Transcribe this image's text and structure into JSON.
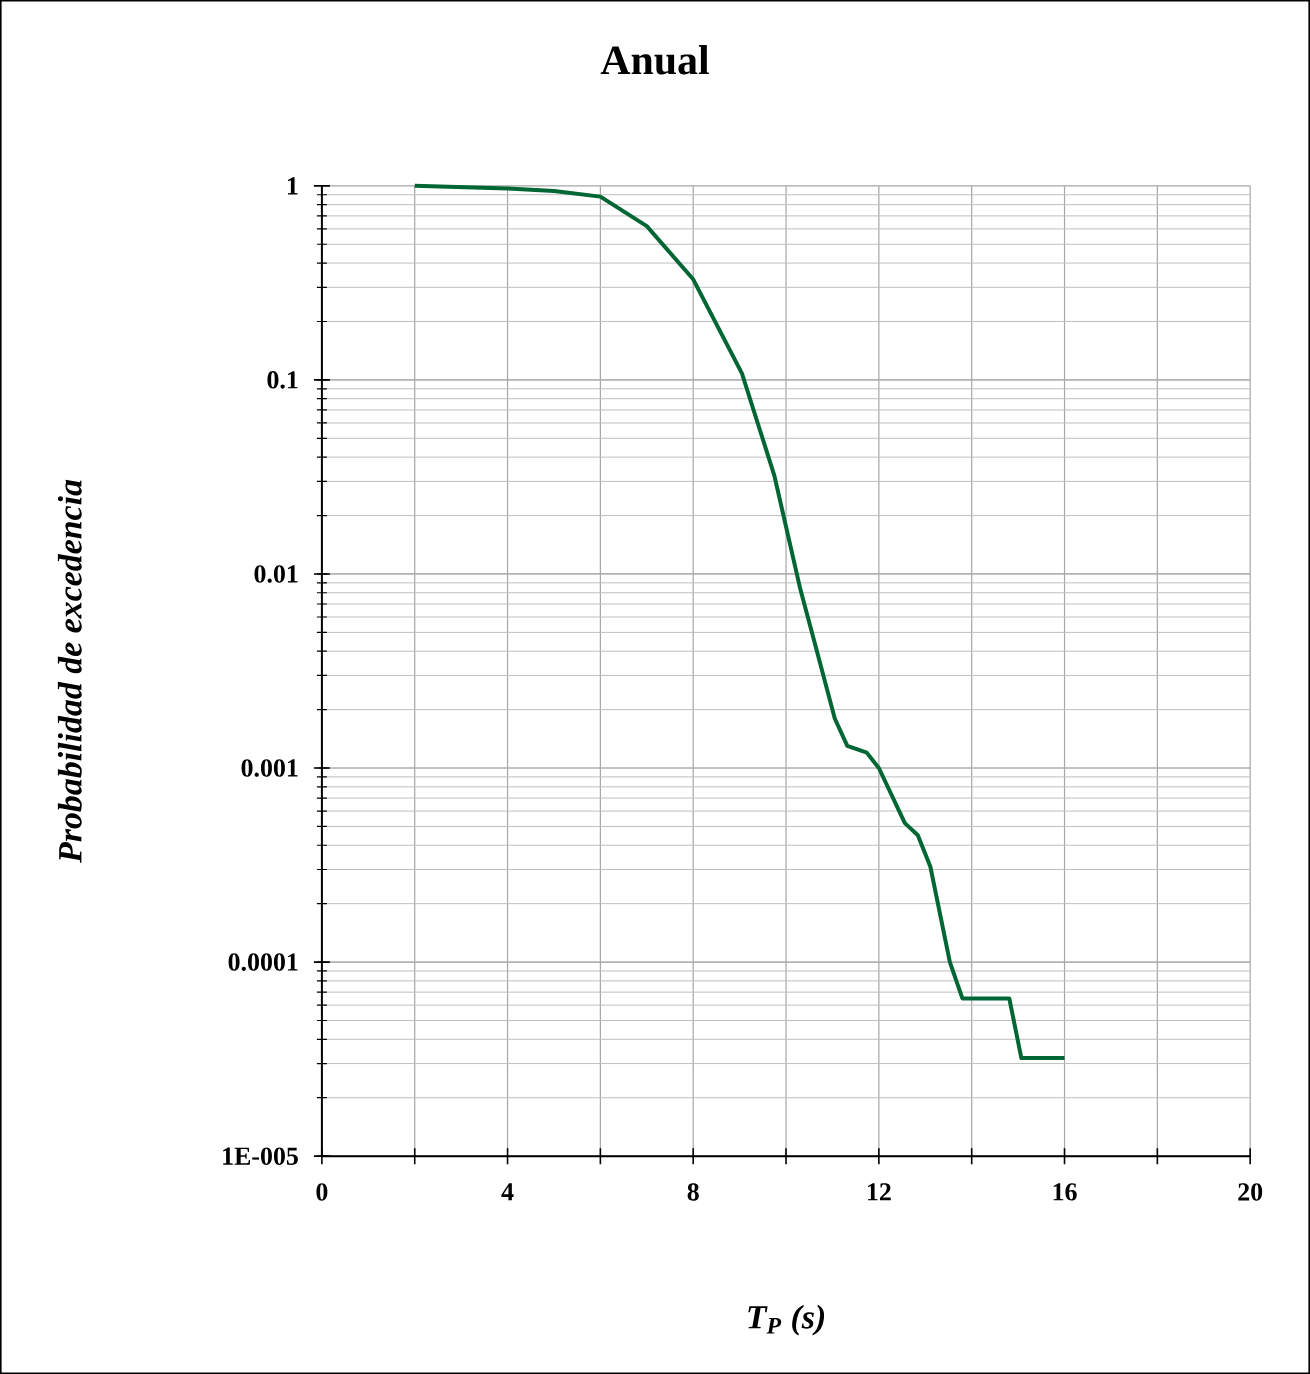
{
  "chart_data": {
    "type": "line",
    "title": "Anual",
    "xlabel": "T$_{P}$ (s)",
    "ylabel": "Probabilidad de excedencia",
    "xlim": [
      0,
      20
    ],
    "ylim": [
      1e-05,
      1
    ],
    "xticks": [
      0,
      {
        "value": 2,
        "label": null
      },
      4,
      {
        "value": 6,
        "label": null
      },
      8,
      {
        "value": 10,
        "label": null
      },
      12,
      {
        "value": 14,
        "label": null
      },
      16,
      {
        "value": 18,
        "label": null
      },
      20
    ],
    "yticks": [
      {
        "value": 1e-05,
        "label": "1E-005"
      },
      0.0001,
      0.001,
      0.01,
      0.1,
      1
    ],
    "log": "y",
    "grid": true,
    "marker": "none",
    "line_style": "solid",
    "series": [
      {
        "color": "#006633",
        "x": [
          2.0,
          4.0,
          5.0,
          6.0,
          7.0,
          8.0,
          9.05,
          9.75,
          10.3,
          10.63,
          11.05,
          11.32,
          11.74,
          12.0,
          12.56,
          12.84,
          13.11,
          13.53,
          13.8,
          14.81,
          15.07,
          16.0
        ],
        "values": [
          1,
          0.97,
          0.94,
          0.88,
          0.62,
          0.33,
          0.108,
          0.032,
          0.0085,
          0.0043,
          0.0018,
          0.0013,
          0.0012,
          0.001,
          0.00052,
          0.00045,
          0.00031,
          0.0001,
          6.5e-05,
          6.5e-05,
          3.2e-05,
          3.2e-05
        ]
      }
    ]
  }
}
